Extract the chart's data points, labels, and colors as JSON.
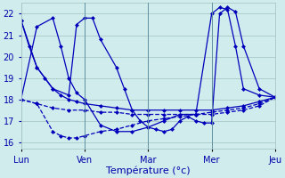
{
  "background_color": "#d0ecec",
  "grid_color": "#a8c8c8",
  "line_color": "#0000bb",
  "xlabel": "Température (°c)",
  "xlim": [
    0,
    96
  ],
  "ylim": [
    15.7,
    22.5
  ],
  "yticks": [
    16,
    17,
    18,
    19,
    20,
    21,
    22
  ],
  "xtick_positions": [
    0,
    24,
    48,
    72,
    96
  ],
  "xtick_labels": [
    "Lun",
    "Ven",
    "Mar",
    "Mer",
    "Jeu"
  ],
  "lines": [
    {
      "x": [
        0,
        3,
        6,
        9,
        12,
        15,
        18,
        21,
        24,
        30,
        36,
        42,
        48,
        54,
        60,
        66,
        72,
        78,
        84,
        90,
        96
      ],
      "y": [
        21.7,
        20.5,
        19.5,
        19.0,
        18.5,
        18.2,
        18.0,
        17.9,
        17.8,
        17.7,
        17.6,
        17.5,
        17.5,
        17.5,
        17.5,
        17.5,
        17.5,
        17.6,
        17.7,
        17.9,
        18.1
      ],
      "style": "-"
    },
    {
      "x": [
        0,
        6,
        12,
        18,
        21,
        24,
        27,
        30,
        36,
        39,
        42,
        45,
        48,
        51,
        54,
        57,
        60,
        63,
        66,
        69,
        72,
        75,
        78,
        81,
        84,
        90,
        96
      ],
      "y": [
        21.7,
        19.5,
        18.5,
        18.2,
        21.5,
        21.8,
        21.8,
        20.8,
        19.5,
        18.5,
        17.5,
        17.0,
        16.7,
        16.6,
        16.5,
        16.6,
        17.0,
        17.2,
        17.0,
        16.9,
        16.9,
        22.0,
        22.3,
        22.1,
        20.5,
        18.5,
        18.1
      ],
      "style": "-"
    },
    {
      "x": [
        0,
        6,
        12,
        15,
        18,
        21,
        24,
        30,
        36,
        42,
        48,
        54,
        60,
        66,
        72,
        78,
        84,
        90,
        96
      ],
      "y": [
        18.0,
        17.8,
        16.5,
        16.3,
        16.2,
        16.2,
        16.3,
        16.5,
        16.6,
        16.8,
        17.0,
        17.1,
        17.2,
        17.3,
        17.4,
        17.5,
        17.6,
        17.8,
        18.1
      ],
      "style": "--"
    },
    {
      "x": [
        0,
        6,
        12,
        18,
        24,
        30,
        36,
        42,
        48,
        54,
        60,
        66,
        72,
        78,
        84,
        90,
        96
      ],
      "y": [
        18.0,
        17.8,
        17.6,
        17.5,
        17.5,
        17.4,
        17.4,
        17.3,
        17.3,
        17.3,
        17.3,
        17.3,
        17.3,
        17.4,
        17.5,
        17.7,
        18.1
      ],
      "style": "--"
    },
    {
      "x": [
        0,
        6,
        12,
        15,
        18,
        21,
        24,
        30,
        36,
        42,
        48,
        54,
        60,
        66,
        72,
        75,
        78,
        81,
        84,
        90,
        96
      ],
      "y": [
        18.0,
        21.4,
        21.8,
        20.5,
        19.0,
        18.3,
        18.0,
        16.8,
        16.5,
        16.5,
        16.7,
        17.0,
        17.3,
        17.3,
        22.0,
        22.3,
        22.2,
        20.5,
        18.5,
        18.2,
        18.1
      ],
      "style": "-"
    }
  ]
}
